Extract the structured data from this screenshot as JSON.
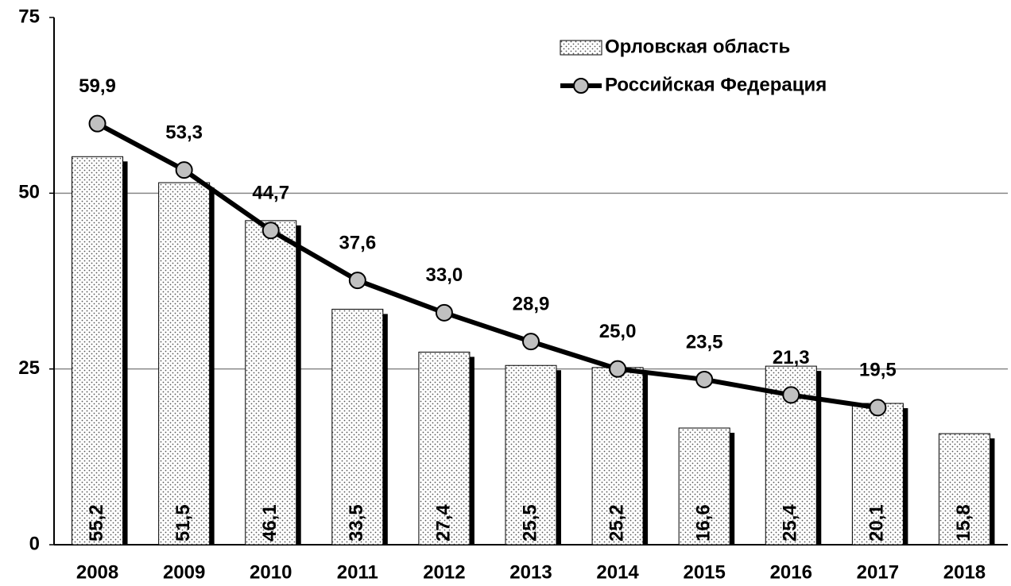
{
  "chart_data": {
    "type": "bar_line",
    "categories": [
      "2008",
      "2009",
      "2010",
      "2011",
      "2012",
      "2013",
      "2014",
      "2015",
      "2016",
      "2017",
      "2018"
    ],
    "series": [
      {
        "name": "Орловская область",
        "type": "bar",
        "color": "#ffffff",
        "values": [
          55.2,
          51.5,
          46.1,
          33.5,
          27.4,
          25.5,
          25.2,
          16.6,
          25.4,
          20.1,
          15.8
        ],
        "value_labels": [
          "55,2",
          "51,5",
          "46,1",
          "33,5",
          "27,4",
          "25,5",
          "25,2",
          "16,6",
          "25,4",
          "20,1",
          "15,8"
        ]
      },
      {
        "name": "Российская Федерация",
        "type": "line",
        "color": "#000000",
        "values": [
          59.9,
          53.3,
          44.7,
          37.6,
          33.0,
          28.9,
          25.0,
          23.5,
          21.3,
          19.5,
          null
        ],
        "value_labels": [
          "59,9",
          "53,3",
          "44,7",
          "37,6",
          "33,0",
          "28,9",
          "25,0",
          "23,5",
          "21,3",
          "19,5",
          null
        ]
      }
    ],
    "ylim": [
      0,
      75
    ],
    "yticks": [
      0,
      25,
      50,
      75
    ],
    "grid": true,
    "legend": "upper right"
  }
}
